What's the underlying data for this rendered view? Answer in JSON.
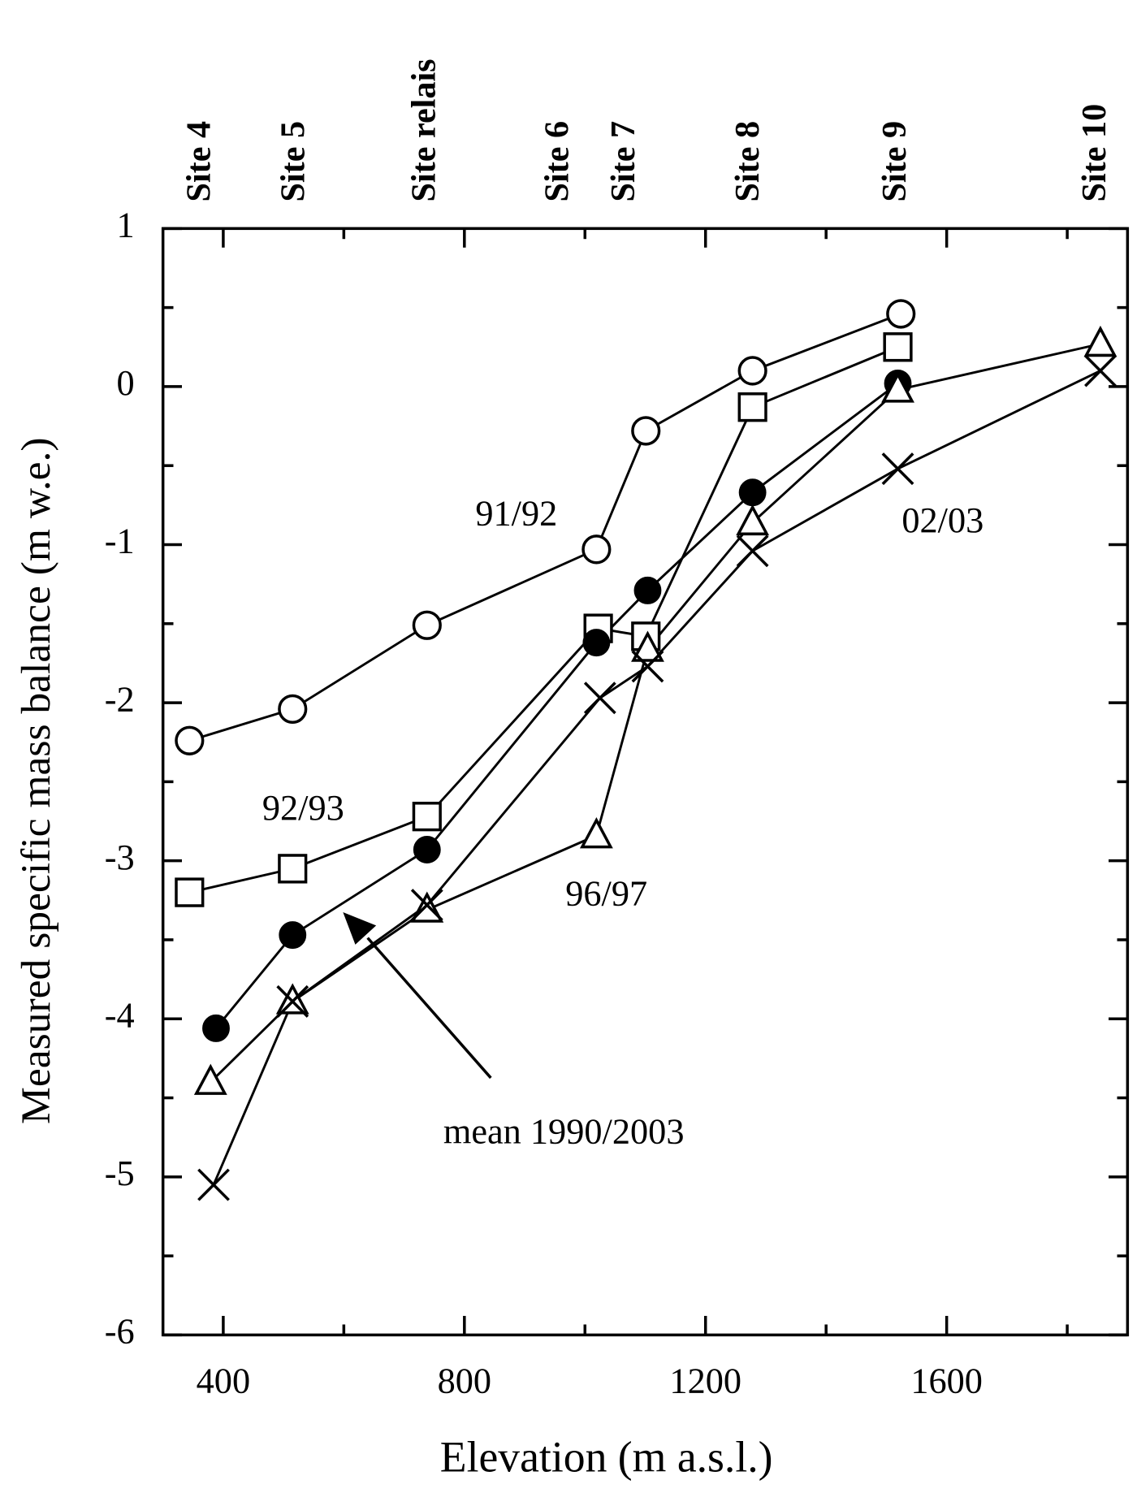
{
  "chart_data": {
    "type": "line",
    "xlabel": "Elevation (m a.s.l.)",
    "ylabel": "Measured specific mass balance (m w.e.)",
    "xlim": [
      300,
      1900
    ],
    "xticks": [
      400,
      800,
      1200,
      1600
    ],
    "xminorticks": [
      600,
      1000,
      1400,
      1800
    ],
    "ylim": [
      -6,
      1
    ],
    "yticks": [
      -6,
      -5,
      -4,
      -3,
      -2,
      -1,
      0,
      1
    ],
    "yminorticks": [
      -5.5,
      -4.5,
      -3.5,
      -2.5,
      -1.5,
      -0.5,
      0.5
    ],
    "top_labels": [
      {
        "label": "Site 4",
        "x": 365
      },
      {
        "label": "Site 5",
        "x": 521
      },
      {
        "label": "Site relais",
        "x": 738
      },
      {
        "label": "Site 6",
        "x": 959
      },
      {
        "label": "Site 7",
        "x": 1069
      },
      {
        "label": "Site 8",
        "x": 1275
      },
      {
        "label": "Site 9",
        "x": 1519
      },
      {
        "label": "Site 10",
        "x": 1850
      }
    ],
    "series": [
      {
        "name": "91/92",
        "marker": "open-circle",
        "color": "#000000",
        "x": [
          344,
          515,
          738,
          1019,
          1101,
          1278,
          1524
        ],
        "values": [
          -2.24,
          -2.04,
          -1.51,
          -1.03,
          -0.28,
          0.1,
          0.46
        ]
      },
      {
        "name": "92/93",
        "marker": "open-square",
        "color": "#000000",
        "x": [
          344,
          515,
          738,
          1022,
          1101,
          1278,
          1519
        ],
        "values": [
          -3.2,
          -3.05,
          -2.72,
          -1.53,
          -1.58,
          -0.13,
          0.25
        ]
      },
      {
        "name": "mean 1990/2003",
        "marker": "filled-circle",
        "color": "#000000",
        "x": [
          388,
          515,
          738,
          1019,
          1104,
          1278,
          1519
        ],
        "values": [
          -4.06,
          -3.47,
          -2.93,
          -1.62,
          -1.29,
          -0.67,
          0.02
        ]
      },
      {
        "name": "96/97",
        "marker": "open-triangle",
        "color": "#000000",
        "x": [
          379,
          515,
          738,
          1019,
          1104,
          1278,
          1519,
          1855
        ],
        "values": [
          -4.4,
          -3.89,
          -3.31,
          -2.84,
          -1.66,
          -0.86,
          -0.02,
          0.27
        ]
      },
      {
        "name": "02/03",
        "marker": "cross",
        "color": "#000000",
        "x": [
          384,
          515,
          738,
          1025,
          1104,
          1278,
          1519,
          1855
        ],
        "values": [
          -5.05,
          -3.89,
          -3.28,
          -1.97,
          -1.77,
          -1.04,
          -0.52,
          0.1
        ]
      }
    ]
  }
}
